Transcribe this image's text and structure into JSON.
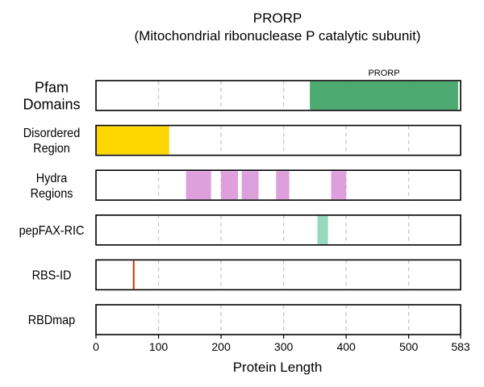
{
  "chart_data": {
    "type": "bar",
    "title": "PRORP",
    "subtitle": "(Mitochondrial ribonuclease P catalytic subunit)",
    "xlabel": "Protein Length",
    "xlim": [
      0,
      583
    ],
    "xticks": [
      0,
      100,
      200,
      300,
      400,
      500,
      583
    ],
    "xtick_labels": [
      "0",
      "100",
      "200",
      "300",
      "400",
      "500",
      "583"
    ],
    "grid": "vertical dashed at 100-unit intervals",
    "tracks": [
      {
        "label": "Pfam\nDomains",
        "color": "#4caa70",
        "segments": [
          {
            "start": 342,
            "end": 579,
            "name": "PRORP"
          }
        ]
      },
      {
        "label": "Disordered\nRegion",
        "color": "#ffd700",
        "segments": [
          {
            "start": 0,
            "end": 117
          }
        ]
      },
      {
        "label": "Hydra\nRegions",
        "color": "#dda0dd",
        "segments": [
          {
            "start": 144,
            "end": 184
          },
          {
            "start": 200,
            "end": 227
          },
          {
            "start": 233,
            "end": 260
          },
          {
            "start": 288,
            "end": 309
          },
          {
            "start": 376,
            "end": 400
          }
        ]
      },
      {
        "label": "pepFAX-RIC",
        "color": "#98d8bf",
        "segments": [
          {
            "start": 354,
            "end": 371
          }
        ]
      },
      {
        "label": "RBS-ID",
        "color": "#cc3300",
        "segments": [
          {
            "start": 59,
            "end": 61
          }
        ]
      },
      {
        "label": "RBDmap",
        "color": "#888888",
        "segments": []
      }
    ]
  }
}
